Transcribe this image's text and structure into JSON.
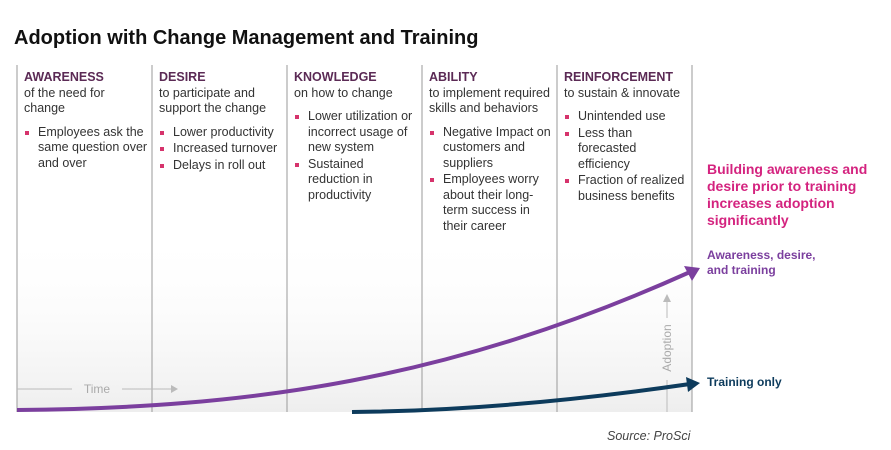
{
  "title": "Adoption with Change Management and Training",
  "columns": [
    {
      "heading": "AWARENESS",
      "subtitle": "of the need for change",
      "bullets": [
        "Employees ask the same question over and over"
      ]
    },
    {
      "heading": "DESIRE",
      "subtitle": "to participate and support the change",
      "bullets": [
        "Lower productivity",
        "Increased turnover",
        "Delays in roll out"
      ]
    },
    {
      "heading": "KNOWLEDGE",
      "subtitle": "on how to change",
      "bullets": [
        "Lower utilization or incorrect usage of new system",
        "Sustained reduction in productivity"
      ]
    },
    {
      "heading": "ABILITY",
      "subtitle": "to implement required skills and behaviors",
      "bullets": [
        "Negative Impact on customers and suppliers",
        "Employees worry about their long-term success in their career"
      ]
    },
    {
      "heading": "REINFORCEMENT",
      "subtitle": "to sustain & innovate",
      "bullets": [
        "Unintended use",
        "Less than forecasted efficiency",
        "Fraction of realized  business benefits"
      ]
    }
  ],
  "callout": "Building awareness and desire prior to training increases adoption significantly",
  "curves": {
    "upper": "Awareness, desire, and training",
    "lower": "Training only"
  },
  "axes": {
    "x": "Time",
    "y": "Adoption"
  },
  "source": "Source: ProSci"
}
